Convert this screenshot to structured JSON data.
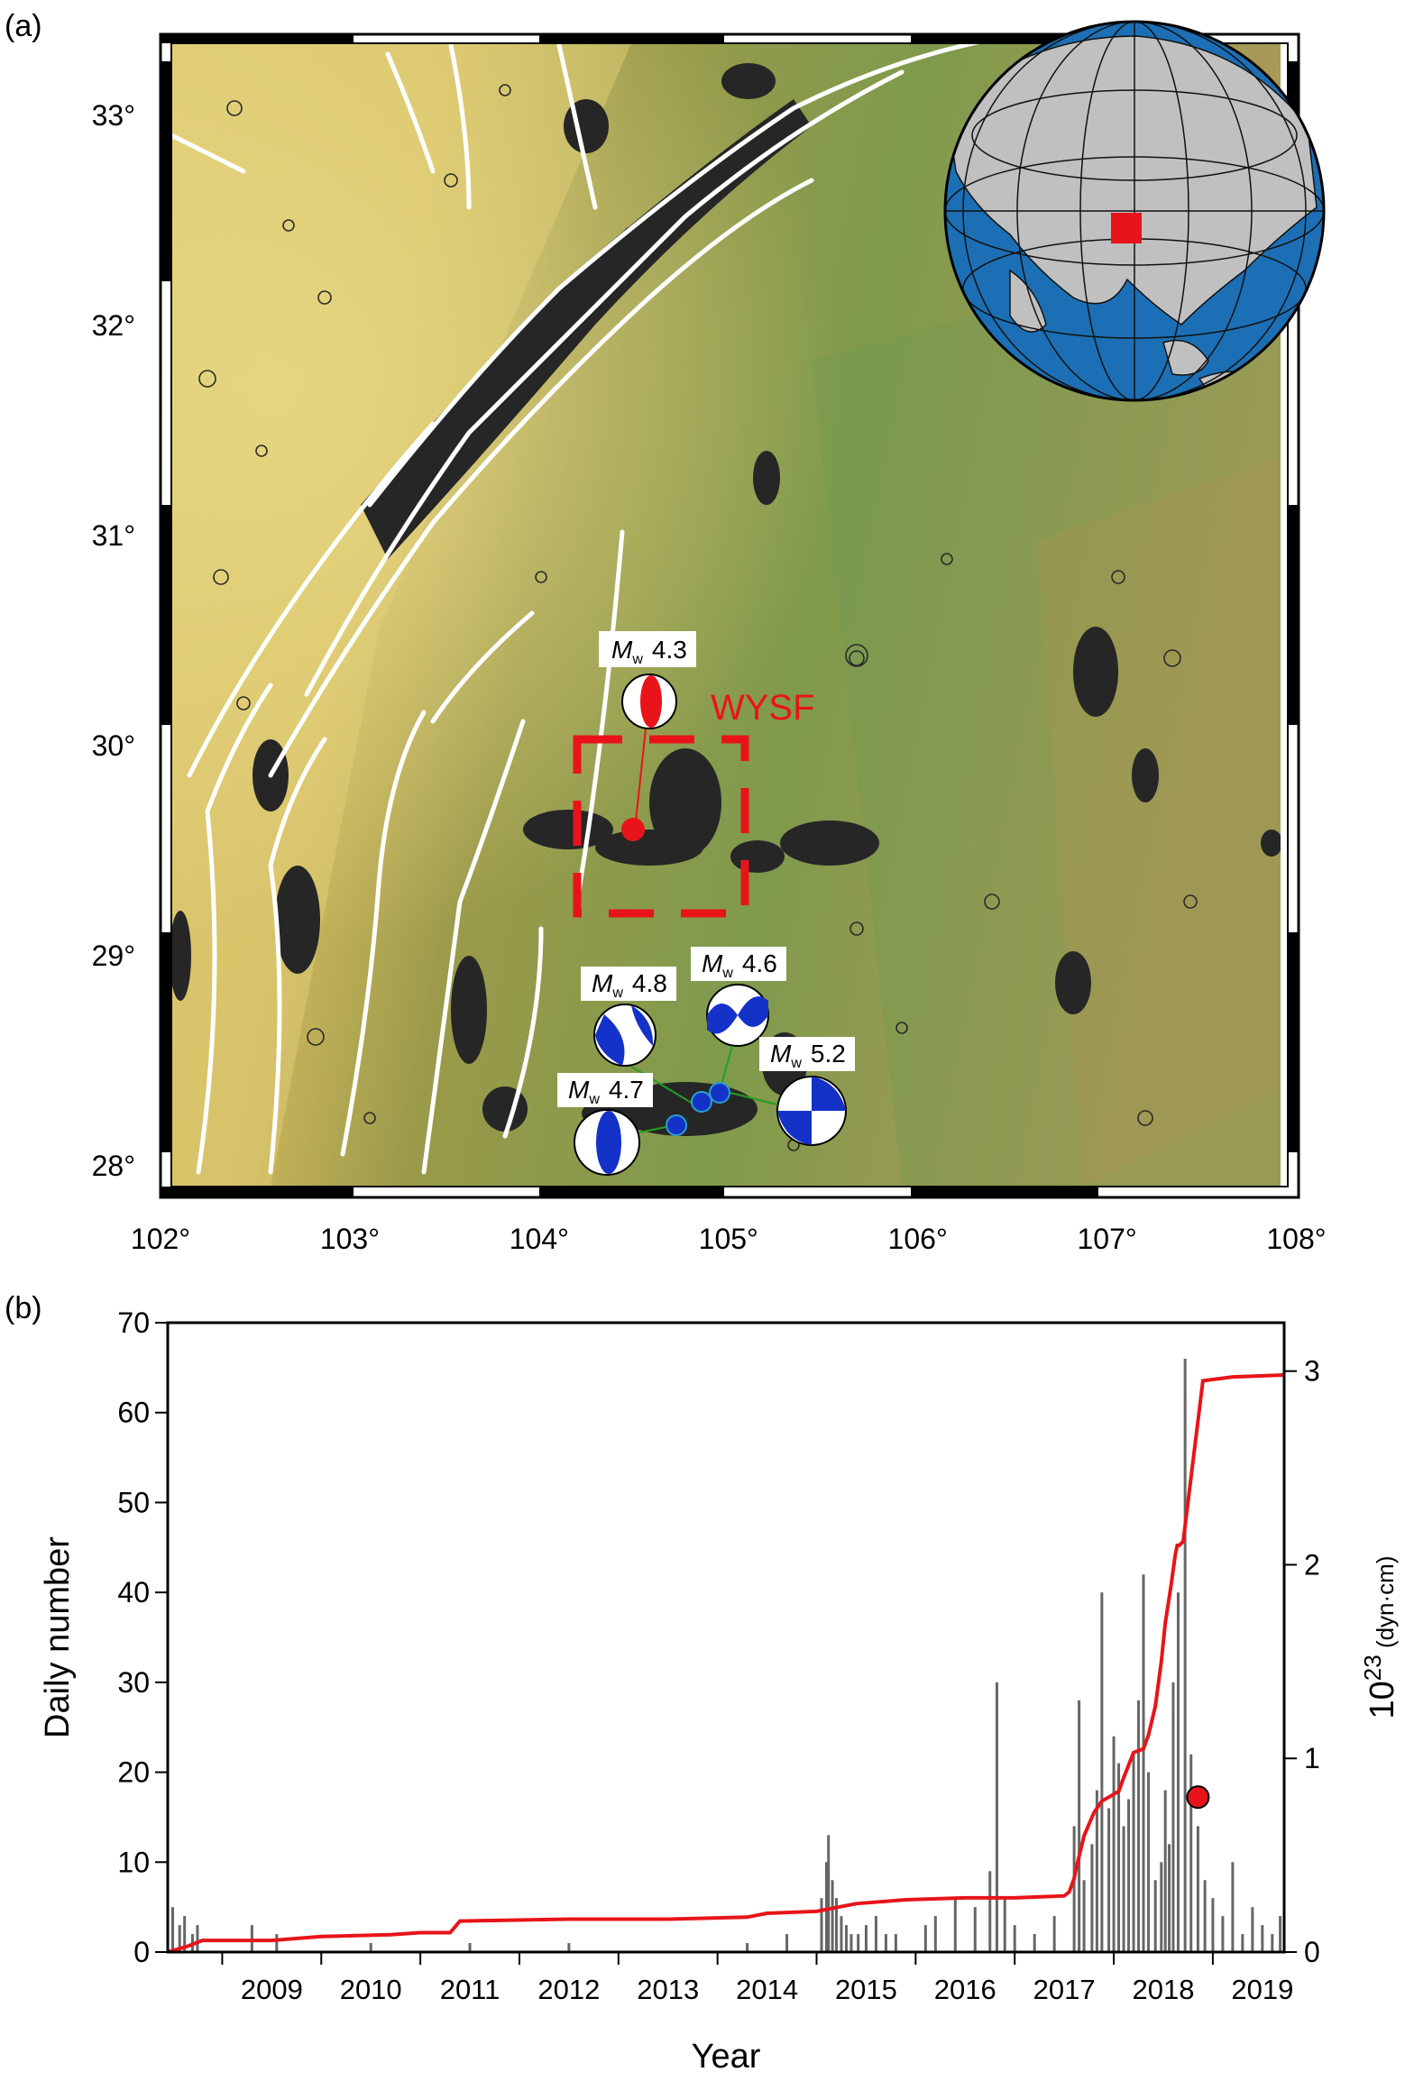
{
  "panel_a": {
    "label": "(a)",
    "lon_ticks": [
      "102°",
      "103°",
      "104°",
      "105°",
      "106°",
      "107°",
      "108°"
    ],
    "lat_ticks": [
      "28°",
      "29°",
      "30°",
      "31°",
      "32°",
      "33°"
    ],
    "lon_range": [
      102,
      108
    ],
    "lat_range": [
      27.8,
      33.2
    ],
    "fault_label": "WYSF",
    "colors": {
      "fault_box": "#e8141a",
      "mechanism": "#1432c8",
      "faults": "#ffffff",
      "events": "#222222",
      "ocean": "#1c6fb4",
      "land": "#c0c0c0"
    },
    "events_main": {
      "lon": 104.55,
      "lat": 29.5,
      "mag_prefix": "M",
      "mag_sub": "w",
      "mag_value": "4.3"
    },
    "focal_mechanisms": [
      {
        "mag_prefix": "M",
        "mag_sub": "w",
        "mag_value": "4.8"
      },
      {
        "mag_prefix": "M",
        "mag_sub": "w",
        "mag_value": "4.6"
      },
      {
        "mag_prefix": "M",
        "mag_sub": "w",
        "mag_value": "5.2"
      },
      {
        "mag_prefix": "M",
        "mag_sub": "w",
        "mag_value": "4.7"
      }
    ],
    "globe_marker": {
      "icon": "red-square-study-area"
    }
  },
  "panel_b": {
    "label": "(b)"
  },
  "chart_data": [
    {
      "type": "bar",
      "title": "",
      "xlabel": "Year",
      "ylabel": "Daily number",
      "y2label": "10",
      "y2label_sup": "23",
      "y2label_unit": " (dyn·cm)",
      "xlim": [
        2008.45,
        2019.72
      ],
      "ylim": [
        0,
        70
      ],
      "y2lim": [
        0,
        3.25
      ],
      "x_tick_labels": [
        "2009",
        "2010",
        "2011",
        "2012",
        "2013",
        "2014",
        "2015",
        "2016",
        "2017",
        "2018",
        "2019"
      ],
      "y_ticks": [
        0,
        10,
        20,
        30,
        40,
        50,
        60,
        70
      ],
      "y2_ticks": [
        0,
        1,
        2,
        3
      ],
      "bar_color": "#666666",
      "series": [
        {
          "type": "bar",
          "x": [
            2008.5,
            2008.57,
            2008.62,
            2008.7,
            2008.75,
            2009.3,
            2009.55,
            2010.5,
            2011.5,
            2012.5,
            2014.3,
            2014.7,
            2015.05,
            2015.1,
            2015.12,
            2015.16,
            2015.2,
            2015.25,
            2015.3,
            2015.35,
            2015.42,
            2015.5,
            2015.6,
            2015.7,
            2015.8,
            2016.1,
            2016.2,
            2016.4,
            2016.6,
            2016.75,
            2016.82,
            2016.9,
            2017.0,
            2017.2,
            2017.4,
            2017.6,
            2017.65,
            2017.7,
            2017.78,
            2017.83,
            2017.88,
            2017.95,
            2018.0,
            2018.05,
            2018.1,
            2018.15,
            2018.2,
            2018.25,
            2018.3,
            2018.35,
            2018.42,
            2018.48,
            2018.52,
            2018.56,
            2018.6,
            2018.65,
            2018.72,
            2018.78,
            2018.85,
            2018.92,
            2019.0,
            2019.1,
            2019.2,
            2019.3,
            2019.4,
            2019.5,
            2019.6,
            2019.68
          ],
          "values": [
            5,
            3,
            4,
            2,
            3,
            3,
            2,
            1,
            1,
            1,
            1,
            2,
            6,
            10,
            13,
            8,
            6,
            4,
            3,
            2,
            2,
            3,
            4,
            2,
            2,
            3,
            4,
            6,
            5,
            9,
            30,
            6,
            3,
            2,
            4,
            14,
            28,
            8,
            12,
            18,
            40,
            16,
            24,
            21,
            14,
            17,
            22,
            28,
            42,
            20,
            8,
            10,
            18,
            12,
            30,
            40,
            66,
            22,
            14,
            8,
            6,
            4,
            10,
            2,
            5,
            3,
            2,
            4
          ]
        },
        {
          "name": "",
          "type": "line",
          "color": "#e8141a",
          "x": [
            2008.45,
            2008.65,
            2008.8,
            2009.0,
            2009.5,
            2010.0,
            2010.7,
            2011.0,
            2011.3,
            2011.4,
            2012.5,
            2013.5,
            2014.3,
            2014.5,
            2015.0,
            2015.4,
            2015.9,
            2016.5,
            2017.0,
            2017.5,
            2017.55,
            2017.6,
            2017.62,
            2017.7,
            2017.8,
            2017.88,
            2017.95,
            2018.05,
            2018.1,
            2018.2,
            2018.3,
            2018.35,
            2018.42,
            2018.48,
            2018.52,
            2018.58,
            2018.62,
            2018.64,
            2018.66,
            2018.7,
            2018.9,
            2019.2,
            2019.72
          ],
          "values": [
            0.0,
            0.03,
            0.06,
            0.06,
            0.06,
            0.08,
            0.09,
            0.1,
            0.1,
            0.16,
            0.17,
            0.17,
            0.18,
            0.2,
            0.21,
            0.25,
            0.27,
            0.28,
            0.28,
            0.29,
            0.31,
            0.38,
            0.43,
            0.6,
            0.72,
            0.78,
            0.8,
            0.83,
            0.9,
            1.03,
            1.05,
            1.12,
            1.27,
            1.5,
            1.7,
            1.9,
            2.05,
            2.1,
            2.1,
            2.12,
            2.95,
            2.97,
            2.98
          ]
        },
        {
          "type": "scatter",
          "color": "#e8141a",
          "x": [
            2018.85
          ],
          "values": [
            0.8
          ]
        }
      ]
    }
  ]
}
